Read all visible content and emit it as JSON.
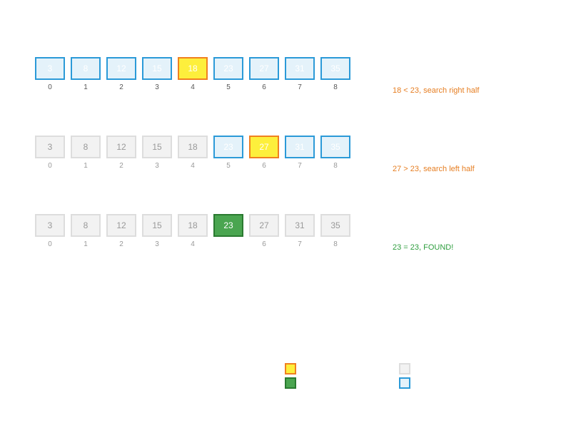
{
  "colors": {
    "active_border": "#2b9ad8",
    "active_fill": "#e4f2fa",
    "excluded_border": "#dddddd",
    "excluded_fill": "#f2f2f2",
    "mid_border": "#f08020",
    "mid_fill": "#fdef3c",
    "found_border": "#2a7a30",
    "found_fill": "#4aa550",
    "note_orange": "#e67e22",
    "note_green": "#2e9e3e"
  },
  "steps": [
    {
      "cells": [
        {
          "value": "3",
          "index": "0",
          "state": "active"
        },
        {
          "value": "8",
          "index": "1",
          "state": "active"
        },
        {
          "value": "12",
          "index": "2",
          "state": "active"
        },
        {
          "value": "15",
          "index": "3",
          "state": "active"
        },
        {
          "value": "18",
          "index": "4",
          "state": "mid"
        },
        {
          "value": "23",
          "index": "5",
          "state": "active"
        },
        {
          "value": "27",
          "index": "6",
          "state": "active"
        },
        {
          "value": "31",
          "index": "7",
          "state": "active"
        },
        {
          "value": "35",
          "index": "8",
          "state": "active"
        }
      ],
      "note": "18 < 23, search right half",
      "note_color": "orange"
    },
    {
      "cells": [
        {
          "value": "3",
          "index": "0",
          "state": "excluded"
        },
        {
          "value": "8",
          "index": "1",
          "state": "excluded"
        },
        {
          "value": "12",
          "index": "2",
          "state": "excluded"
        },
        {
          "value": "15",
          "index": "3",
          "state": "excluded"
        },
        {
          "value": "18",
          "index": "4",
          "state": "excluded"
        },
        {
          "value": "23",
          "index": "5",
          "state": "active"
        },
        {
          "value": "27",
          "index": "6",
          "state": "mid"
        },
        {
          "value": "31",
          "index": "7",
          "state": "active"
        },
        {
          "value": "35",
          "index": "8",
          "state": "active"
        }
      ],
      "note": "27 > 23, search left half",
      "note_color": "orange"
    },
    {
      "cells": [
        {
          "value": "3",
          "index": "0",
          "state": "excluded"
        },
        {
          "value": "8",
          "index": "1",
          "state": "excluded"
        },
        {
          "value": "12",
          "index": "2",
          "state": "excluded"
        },
        {
          "value": "15",
          "index": "3",
          "state": "excluded"
        },
        {
          "value": "18",
          "index": "4",
          "state": "excluded"
        },
        {
          "value": "23",
          "index": "",
          "state": "found"
        },
        {
          "value": "27",
          "index": "6",
          "state": "excluded"
        },
        {
          "value": "31",
          "index": "7",
          "state": "excluded"
        },
        {
          "value": "35",
          "index": "8",
          "state": "excluded"
        }
      ],
      "note": "23 = 23, FOUND!",
      "note_color": "green"
    }
  ],
  "legend": [
    {
      "state": "mid"
    },
    {
      "state": "found"
    },
    {
      "state": "excluded"
    },
    {
      "state": "active"
    }
  ]
}
